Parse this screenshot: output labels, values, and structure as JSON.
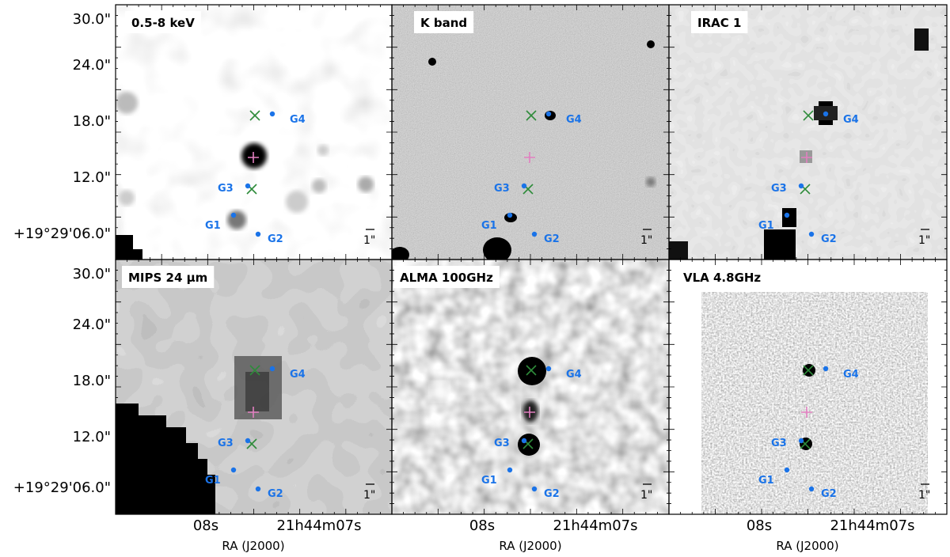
{
  "figure": {
    "y_tick_labels": [
      "30.0\"",
      "24.0\"",
      "18.0\"",
      "12.0\"",
      "+19°29'06.0\""
    ],
    "x_tick_labels": [
      "08s",
      "21h44m07s"
    ],
    "x_axis_label": "RA (J2000)",
    "scale_bar_label": "1\"",
    "panels": [
      {
        "title": "0.5-8 keV",
        "style": "xray"
      },
      {
        "title": "K band",
        "style": "kband"
      },
      {
        "title": "IRAC 1",
        "style": "irac"
      },
      {
        "title": "MIPS 24 μm",
        "style": "mips"
      },
      {
        "title": "ALMA 100GHz",
        "style": "alma"
      },
      {
        "title": "VLA 4.8GHz",
        "style": "vla"
      }
    ],
    "sources": [
      {
        "label": "G1",
        "color": "#1a73e8"
      },
      {
        "label": "G2",
        "color": "#1a73e8"
      },
      {
        "label": "G3",
        "color": "#1a73e8"
      },
      {
        "label": "G4",
        "color": "#1a73e8"
      }
    ],
    "marker_colors": {
      "galaxy": "#1a73e8",
      "cross": "#2e8b3a",
      "plus": "#e27fc0"
    }
  }
}
